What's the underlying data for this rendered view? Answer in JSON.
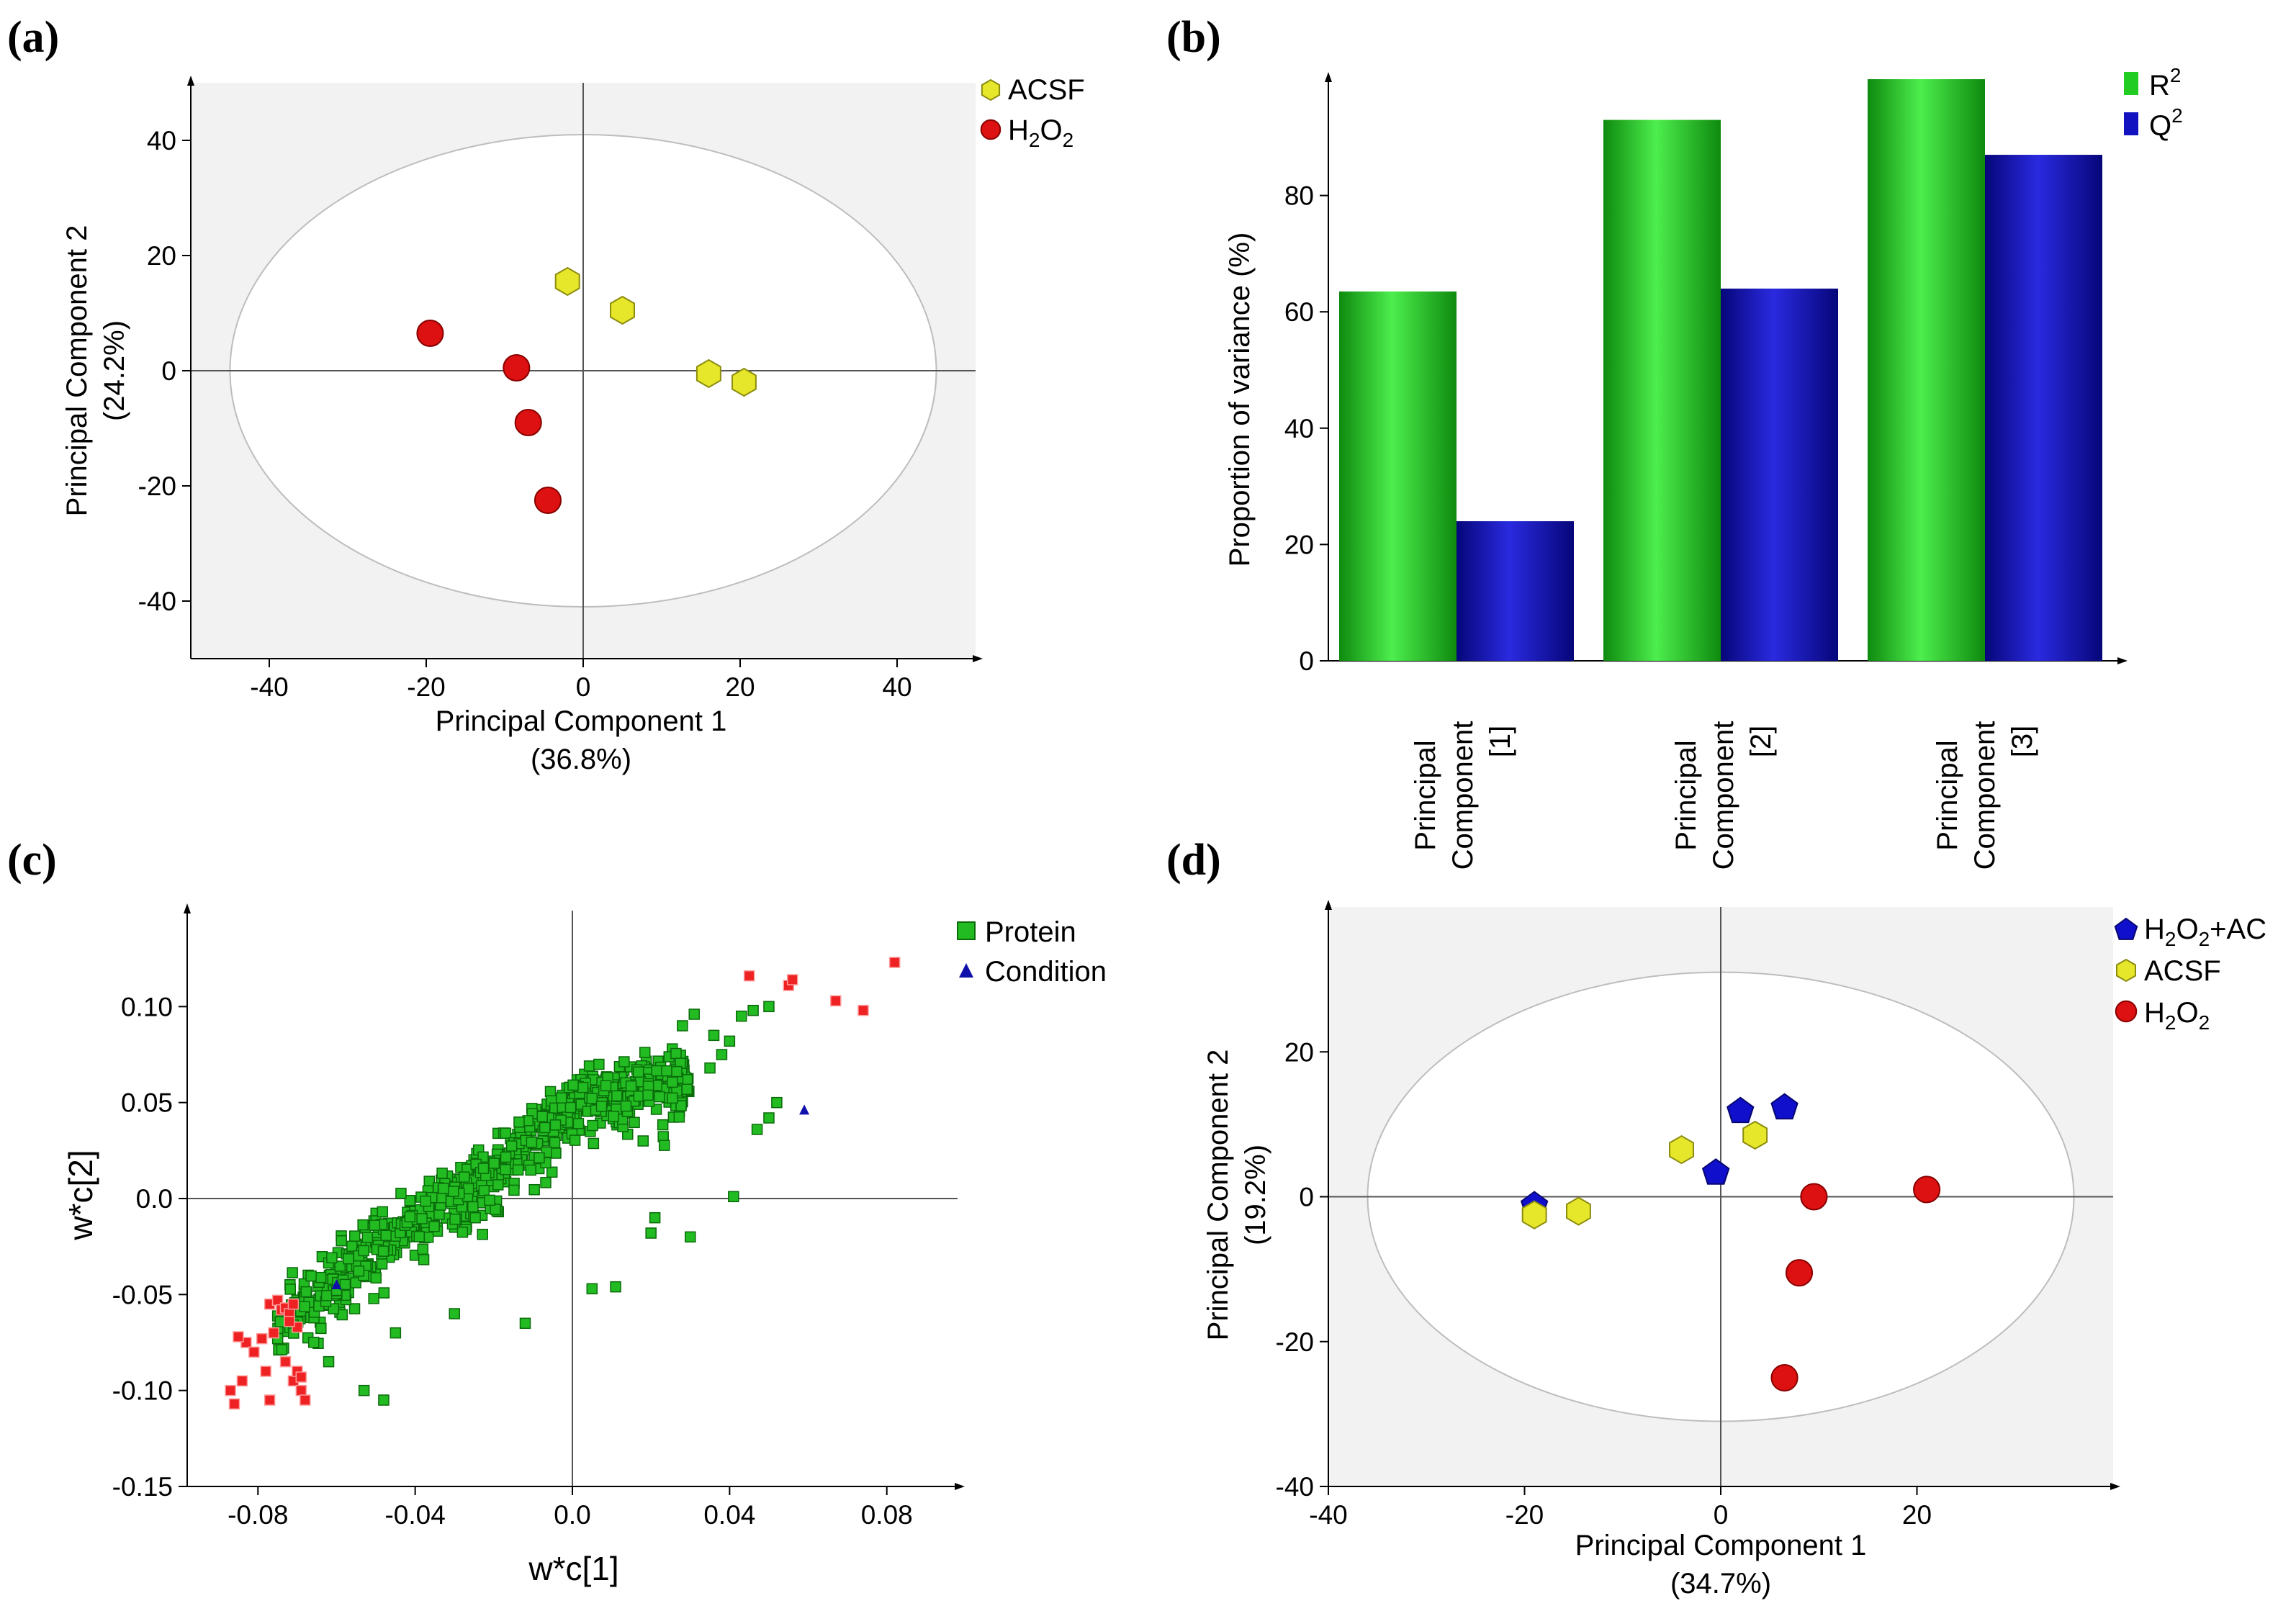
{
  "colors": {
    "acsf": "#e6e62a",
    "acsf_stroke": "#8c8c10",
    "h2o2": "#dd1111",
    "h2o2_stroke": "#880000",
    "h2o2_ac": "#1010cc",
    "protein": "#22bb22",
    "protein_stroke": "#0a6a0a",
    "outlier": "#ee2222",
    "r2": "#22cc22",
    "q2": "#1212c0",
    "panel_bg": "#f2f2f2"
  },
  "panels": {
    "a": {
      "label": "(a)"
    },
    "b": {
      "label": "(b)"
    },
    "c": {
      "label": "(c)"
    },
    "d": {
      "label": "(d)"
    }
  },
  "chart_data": [
    {
      "id": "a",
      "type": "scatter",
      "title": "",
      "xlabel": "Principal Component 1",
      "xlabel_sub": "(36.8%)",
      "ylabel": "Principal Component 2",
      "ylabel_sub": "(24.2%)",
      "xlim": [
        -50,
        50
      ],
      "ylim": [
        -50,
        50
      ],
      "xticks": [
        -40,
        -20,
        0,
        20,
        40
      ],
      "yticks": [
        -40,
        -20,
        0,
        20,
        40
      ],
      "ellipse": {
        "rx": 45,
        "ry": 41
      },
      "legend": [
        {
          "name": "ACSF",
          "marker": "hexagon",
          "sub": ""
        },
        {
          "name": "H",
          "marker": "circle",
          "sub": "2",
          "name2": "O",
          "sub2": "2"
        }
      ],
      "series": [
        {
          "name": "ACSF",
          "marker": "hexagon",
          "points": [
            [
              -2,
              15.5
            ],
            [
              5,
              10.5
            ],
            [
              16,
              -0.5
            ],
            [
              20.5,
              -2
            ]
          ]
        },
        {
          "name": "H2O2",
          "marker": "circle",
          "points": [
            [
              -19.5,
              6.5
            ],
            [
              -8.5,
              0.5
            ],
            [
              -7,
              -9
            ],
            [
              -4.5,
              -22.5
            ]
          ]
        }
      ]
    },
    {
      "id": "b",
      "type": "bar",
      "ylabel": "Proportion of variance (%)",
      "ylim": [
        0,
        100
      ],
      "yticks": [
        0,
        20,
        40,
        60,
        80
      ],
      "categories": [
        {
          "line1": "Principal",
          "line2": "Component",
          "line3": "[1]"
        },
        {
          "line1": "Principal",
          "line2": "Component",
          "line3": "[2]"
        },
        {
          "line1": "Principal",
          "line2": "Component",
          "line3": "[3]"
        }
      ],
      "legend": [
        {
          "name": "R",
          "sup": "2"
        },
        {
          "name": "Q",
          "sup": "2"
        }
      ],
      "series": [
        {
          "name": "R2",
          "values": [
            63.5,
            93,
            100
          ]
        },
        {
          "name": "Q2",
          "values": [
            24,
            64,
            87
          ]
        }
      ]
    },
    {
      "id": "c",
      "type": "scatter",
      "xlabel": "w*c[1]",
      "ylabel": "w*c[2]",
      "xlim": [
        -0.098,
        0.098
      ],
      "ylim": [
        -0.15,
        0.15
      ],
      "xticks": [
        "-0.08",
        "-0.04",
        "0.0",
        "0.04",
        "0.08"
      ],
      "xtick_values": [
        -0.08,
        -0.04,
        0,
        0.04,
        0.08
      ],
      "yticks": [
        "0.10",
        "0.05",
        "0.0",
        "-0.05",
        "-0.10",
        "-0.15"
      ],
      "ytick_values": [
        0.1,
        0.05,
        0,
        -0.05,
        -0.1,
        -0.15
      ],
      "legend": [
        {
          "name": "Protein",
          "marker": "square"
        },
        {
          "name": "Condition",
          "marker": "triangle"
        }
      ],
      "protein_cloud": {
        "count": 760,
        "description": "dense band of protein loadings from lower-left to upper-right",
        "trend": [
          [
            -0.075,
            -0.06
          ],
          [
            -0.05,
            -0.02
          ],
          [
            -0.02,
            0.02
          ],
          [
            0.0,
            0.055
          ],
          [
            0.03,
            0.07
          ]
        ],
        "seed": 7
      },
      "protein_scatter_extra": [
        [
          -0.053,
          -0.1
        ],
        [
          -0.048,
          -0.105
        ],
        [
          -0.062,
          -0.085
        ],
        [
          -0.045,
          -0.07
        ],
        [
          -0.03,
          -0.06
        ],
        [
          -0.012,
          -0.065
        ],
        [
          0.005,
          -0.047
        ],
        [
          0.011,
          -0.046
        ],
        [
          0.021,
          -0.01
        ],
        [
          0.02,
          -0.018
        ],
        [
          0.03,
          -0.02
        ],
        [
          0.041,
          0.001
        ],
        [
          0.047,
          0.036
        ],
        [
          0.05,
          0.042
        ],
        [
          0.052,
          0.05
        ],
        [
          0.043,
          0.095
        ],
        [
          0.036,
          0.085
        ],
        [
          0.035,
          0.068
        ],
        [
          0.046,
          0.098
        ],
        [
          0.05,
          0.1
        ],
        [
          0.028,
          0.09
        ],
        [
          0.031,
          0.096
        ],
        [
          0.038,
          0.075
        ],
        [
          0.04,
          0.082
        ],
        [
          0.018,
          0.03
        ]
      ],
      "outliers": [
        [
          -0.087,
          -0.1
        ],
        [
          -0.086,
          -0.107
        ],
        [
          -0.084,
          -0.095
        ],
        [
          -0.083,
          -0.075
        ],
        [
          -0.085,
          -0.072
        ],
        [
          -0.081,
          -0.08
        ],
        [
          -0.079,
          -0.073
        ],
        [
          -0.077,
          -0.105
        ],
        [
          -0.078,
          -0.09
        ],
        [
          -0.076,
          -0.07
        ],
        [
          -0.077,
          -0.055
        ],
        [
          -0.075,
          -0.053
        ],
        [
          -0.074,
          -0.058
        ],
        [
          -0.073,
          -0.057
        ],
        [
          -0.072,
          -0.06
        ],
        [
          -0.071,
          -0.055
        ],
        [
          -0.073,
          -0.085
        ],
        [
          -0.071,
          -0.095
        ],
        [
          -0.07,
          -0.09
        ],
        [
          -0.069,
          -0.1
        ],
        [
          -0.07,
          -0.067
        ],
        [
          -0.072,
          -0.064
        ],
        [
          -0.068,
          -0.105
        ],
        [
          -0.069,
          -0.093
        ],
        [
          0.045,
          0.116
        ],
        [
          0.055,
          0.111
        ],
        [
          0.056,
          0.114
        ],
        [
          0.067,
          0.103
        ],
        [
          0.074,
          0.098
        ],
        [
          0.082,
          0.123
        ]
      ],
      "condition": [
        [
          -0.06,
          -0.045
        ],
        [
          0.059,
          0.046
        ]
      ]
    },
    {
      "id": "d",
      "type": "scatter",
      "xlabel": "Principal Component 1",
      "xlabel_sub": "(34.7%)",
      "ylabel": "Principal Component 2",
      "ylabel_sub": "(19.2%)",
      "xlim": [
        -40,
        40
      ],
      "ylim": [
        -40,
        40
      ],
      "xticks": [
        -40,
        -20,
        0,
        20
      ],
      "yticks": [
        20,
        0,
        -20,
        -40
      ],
      "ellipse": {
        "rx": 36,
        "ry": 31
      },
      "legend": [
        {
          "name": "H",
          "marker": "pentagon",
          "sub": "2",
          "name2": "O",
          "sub2": "2",
          "tail": "+AC"
        },
        {
          "name": "ACSF",
          "marker": "hexagon"
        },
        {
          "name": "H",
          "marker": "circle",
          "sub": "2",
          "name2": "O",
          "sub2": "2"
        }
      ],
      "series": [
        {
          "name": "H2O2+AC",
          "marker": "pentagon",
          "points": [
            [
              -19,
              -1
            ],
            [
              -0.5,
              3.5
            ],
            [
              2,
              12
            ],
            [
              6.5,
              12.5
            ]
          ]
        },
        {
          "name": "ACSF",
          "marker": "hexagon",
          "points": [
            [
              -19,
              -2.5
            ],
            [
              -14.5,
              -2
            ],
            [
              -4,
              6.5
            ],
            [
              3.5,
              8.5
            ]
          ]
        },
        {
          "name": "H2O2",
          "marker": "circle",
          "points": [
            [
              9.5,
              0
            ],
            [
              21,
              1
            ],
            [
              8,
              -10.5
            ],
            [
              6.5,
              -25
            ]
          ]
        }
      ]
    }
  ]
}
